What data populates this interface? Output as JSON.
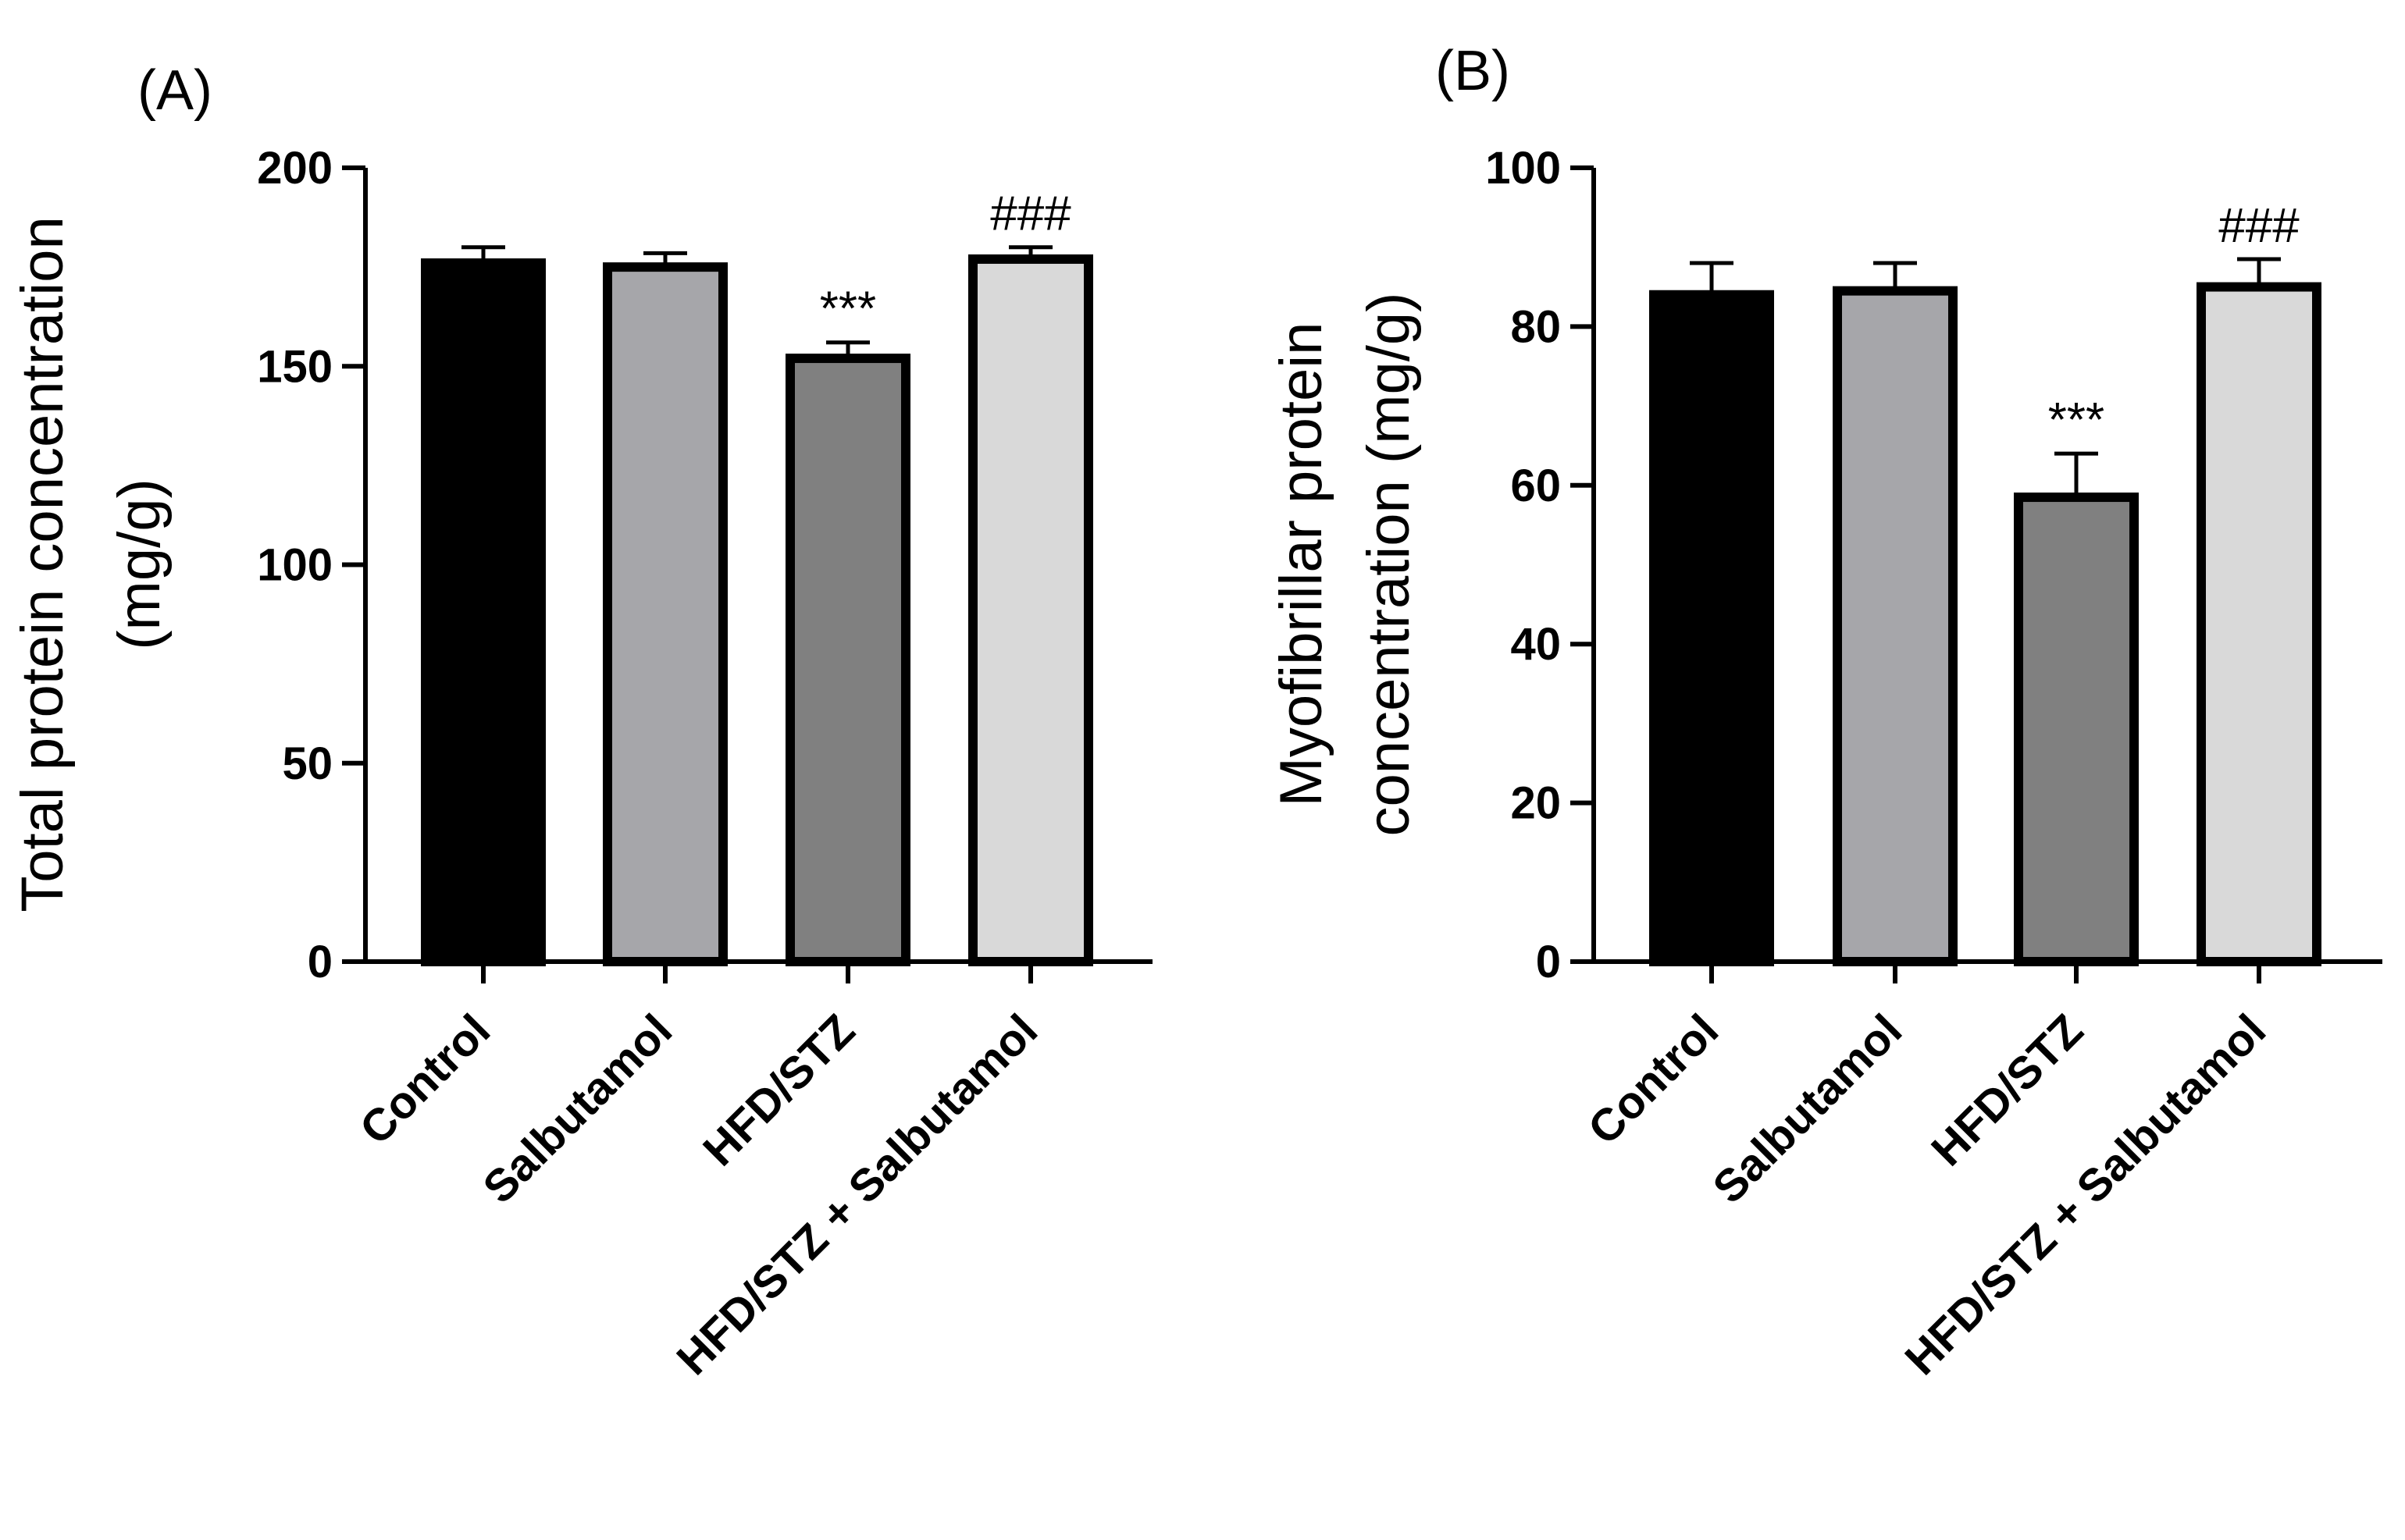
{
  "chart_data": [
    {
      "panel": "(A)",
      "type": "bar",
      "ylabel_lines": [
        "Total protein concentration",
        "(mg/g)"
      ],
      "categories": [
        "Control",
        "Salbutamol",
        "HFD/STZ",
        "HFD/STZ + Salbutamol"
      ],
      "values": [
        176,
        175,
        152,
        177
      ],
      "errors": [
        4,
        3.5,
        4,
        3
      ],
      "annotations": [
        "",
        "",
        "***",
        "###"
      ],
      "ylim": [
        0,
        200
      ],
      "yticks": [
        0,
        50,
        100,
        150,
        200
      ],
      "colors": [
        "#000000",
        "#a6a6aa",
        "#808080",
        "#d9d9d9"
      ]
    },
    {
      "panel": "(B)",
      "type": "bar",
      "ylabel_lines": [
        "Myofibrillar protein",
        "concentration (mg/g)"
      ],
      "categories": [
        "Control",
        "Salbutamol",
        "HFD/STZ",
        "HFD/STZ + Salbutamol"
      ],
      "values": [
        84,
        84.5,
        58.5,
        85
      ],
      "errors": [
        4,
        3.5,
        5.5,
        3.5
      ],
      "annotations": [
        "",
        "",
        "***",
        "###"
      ],
      "ylim": [
        0,
        100
      ],
      "yticks": [
        0,
        20,
        40,
        60,
        80,
        100
      ],
      "colors": [
        "#000000",
        "#a6a6aa",
        "#808080",
        "#d9d9d9"
      ]
    }
  ]
}
